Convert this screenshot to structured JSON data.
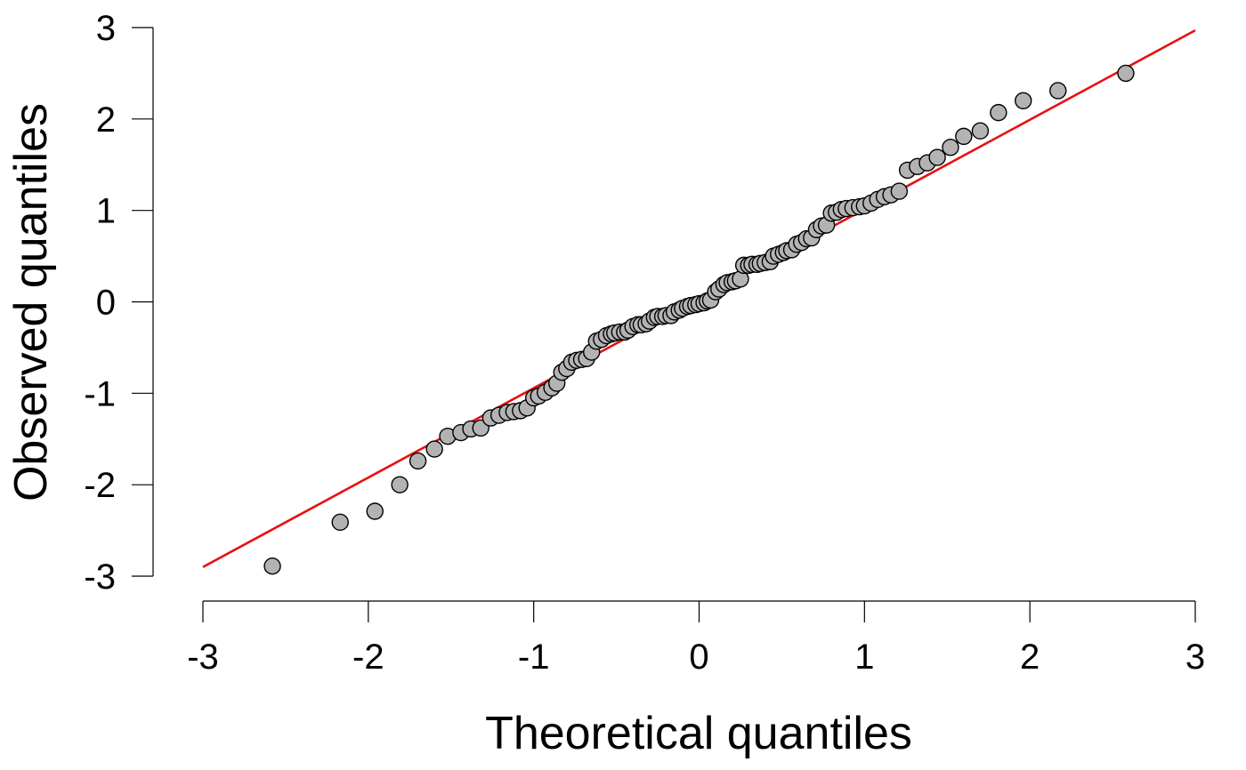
{
  "chart_data": {
    "type": "scatter",
    "title": "",
    "xlabel": "Theoretical quantiles",
    "ylabel": "Observed quantiles",
    "xlim": [
      -3,
      3
    ],
    "ylim": [
      -3,
      3
    ],
    "x_ticks": [
      "-3",
      "-2",
      "-1",
      "0",
      "1",
      "2",
      "3"
    ],
    "y_ticks": [
      "-3",
      "-2",
      "-1",
      "0",
      "1",
      "2",
      "3"
    ],
    "grid": false,
    "legend": "none",
    "point_color": "#b3b3b3",
    "point_stroke": "#000000",
    "line_color": "#e8100f",
    "reference_line": {
      "from": [
        -3,
        -2.9
      ],
      "to": [
        3,
        2.97
      ]
    },
    "points": [
      [
        -2.58,
        -2.89
      ],
      [
        -2.17,
        -2.41
      ],
      [
        -1.96,
        -2.29
      ],
      [
        -1.81,
        -2.0
      ],
      [
        -1.7,
        -1.74
      ],
      [
        -1.6,
        -1.61
      ],
      [
        -1.52,
        -1.47
      ],
      [
        -1.44,
        -1.43
      ],
      [
        -1.38,
        -1.39
      ],
      [
        -1.32,
        -1.38
      ],
      [
        -1.26,
        -1.27
      ],
      [
        -1.21,
        -1.24
      ],
      [
        -1.16,
        -1.21
      ],
      [
        -1.12,
        -1.2
      ],
      [
        -1.08,
        -1.19
      ],
      [
        -1.04,
        -1.16
      ],
      [
        -1.0,
        -1.05
      ],
      [
        -0.97,
        -1.03
      ],
      [
        -0.93,
        -0.99
      ],
      [
        -0.89,
        -0.94
      ],
      [
        -0.86,
        -0.89
      ],
      [
        -0.83,
        -0.77
      ],
      [
        -0.8,
        -0.73
      ],
      [
        -0.77,
        -0.66
      ],
      [
        -0.74,
        -0.64
      ],
      [
        -0.71,
        -0.63
      ],
      [
        -0.68,
        -0.62
      ],
      [
        -0.65,
        -0.55
      ],
      [
        -0.62,
        -0.43
      ],
      [
        -0.59,
        -0.41
      ],
      [
        -0.56,
        -0.37
      ],
      [
        -0.53,
        -0.35
      ],
      [
        -0.51,
        -0.34
      ],
      [
        -0.48,
        -0.33
      ],
      [
        -0.45,
        -0.33
      ],
      [
        -0.43,
        -0.31
      ],
      [
        -0.4,
        -0.27
      ],
      [
        -0.37,
        -0.25
      ],
      [
        -0.35,
        -0.25
      ],
      [
        -0.32,
        -0.24
      ],
      [
        -0.3,
        -0.21
      ],
      [
        -0.27,
        -0.17
      ],
      [
        -0.25,
        -0.16
      ],
      [
        -0.22,
        -0.16
      ],
      [
        -0.2,
        -0.15
      ],
      [
        -0.17,
        -0.15
      ],
      [
        -0.15,
        -0.11
      ],
      [
        -0.12,
        -0.09
      ],
      [
        -0.1,
        -0.07
      ],
      [
        -0.07,
        -0.05
      ],
      [
        -0.05,
        -0.04
      ],
      [
        -0.02,
        -0.03
      ],
      [
        0.0,
        -0.02
      ],
      [
        0.03,
        -0.01
      ],
      [
        0.05,
        0.01
      ],
      [
        0.07,
        0.02
      ],
      [
        0.1,
        0.11
      ],
      [
        0.12,
        0.14
      ],
      [
        0.15,
        0.19
      ],
      [
        0.17,
        0.21
      ],
      [
        0.2,
        0.22
      ],
      [
        0.22,
        0.23
      ],
      [
        0.25,
        0.25
      ],
      [
        0.27,
        0.4
      ],
      [
        0.3,
        0.4
      ],
      [
        0.32,
        0.41
      ],
      [
        0.35,
        0.41
      ],
      [
        0.37,
        0.42
      ],
      [
        0.4,
        0.43
      ],
      [
        0.43,
        0.44
      ],
      [
        0.45,
        0.5
      ],
      [
        0.48,
        0.52
      ],
      [
        0.51,
        0.54
      ],
      [
        0.53,
        0.56
      ],
      [
        0.56,
        0.57
      ],
      [
        0.59,
        0.63
      ],
      [
        0.62,
        0.65
      ],
      [
        0.65,
        0.69
      ],
      [
        0.68,
        0.7
      ],
      [
        0.71,
        0.79
      ],
      [
        0.74,
        0.83
      ],
      [
        0.77,
        0.84
      ],
      [
        0.8,
        0.97
      ],
      [
        0.83,
        0.98
      ],
      [
        0.86,
        1.01
      ],
      [
        0.89,
        1.02
      ],
      [
        0.93,
        1.03
      ],
      [
        0.97,
        1.04
      ],
      [
        1.0,
        1.05
      ],
      [
        1.04,
        1.08
      ],
      [
        1.08,
        1.12
      ],
      [
        1.12,
        1.15
      ],
      [
        1.16,
        1.17
      ],
      [
        1.21,
        1.21
      ],
      [
        1.26,
        1.44
      ],
      [
        1.32,
        1.48
      ],
      [
        1.38,
        1.52
      ],
      [
        1.44,
        1.58
      ],
      [
        1.52,
        1.69
      ],
      [
        1.6,
        1.81
      ],
      [
        1.7,
        1.87
      ],
      [
        1.81,
        2.07
      ],
      [
        1.96,
        2.2
      ],
      [
        2.17,
        2.31
      ],
      [
        2.58,
        2.5
      ]
    ]
  }
}
